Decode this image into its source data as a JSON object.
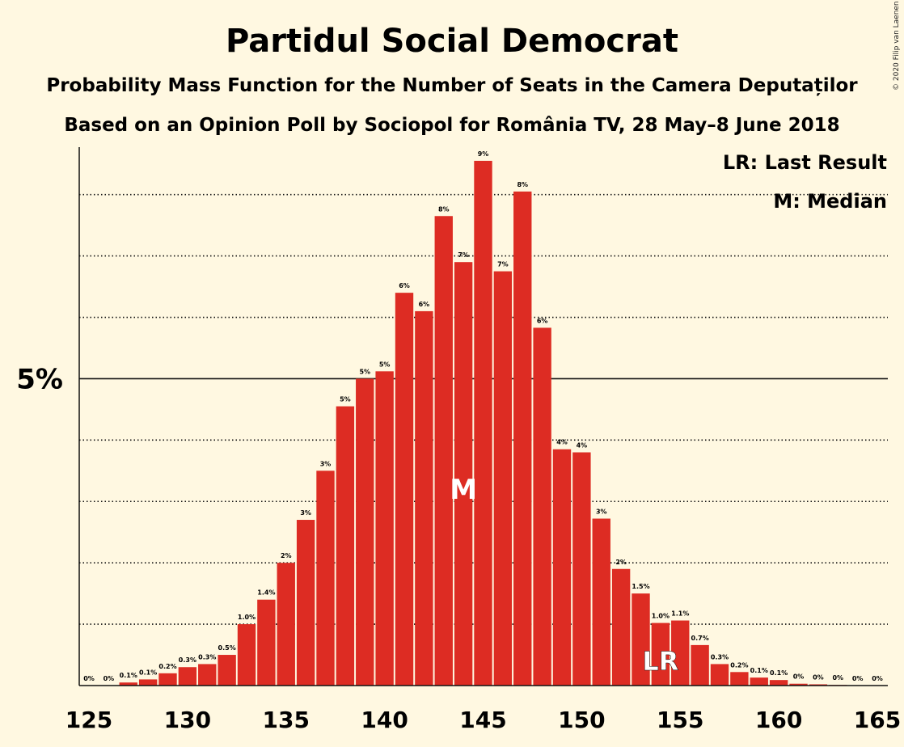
{
  "chart_data": {
    "type": "bar",
    "title": "Partidul Social Democrat",
    "subtitle1": "Probability Mass Function for the Number of Seats in the Camera Deputaților",
    "subtitle2": "Based on an Opinion Poll by Sociopol for România TV, 28 May–8 June 2018",
    "copyright": "© 2020 Filip van Laenen",
    "legend": {
      "lr": "LR: Last Result",
      "m": "M: Median"
    },
    "xlim": [
      125,
      165
    ],
    "ylim": [
      0,
      9.3
    ],
    "x_ticks": [
      125,
      130,
      135,
      140,
      145,
      150,
      155,
      160,
      165
    ],
    "y_ticks": [
      {
        "value": 5,
        "label": "5%"
      }
    ],
    "gridlines": [
      1,
      2,
      3,
      4,
      6,
      7,
      8
    ],
    "bar_color": "#dd2c23",
    "x": [
      125,
      126,
      127,
      128,
      129,
      130,
      131,
      132,
      133,
      134,
      135,
      136,
      137,
      138,
      139,
      140,
      141,
      142,
      143,
      144,
      145,
      146,
      147,
      148,
      149,
      150,
      151,
      152,
      153,
      154,
      155,
      156,
      157,
      158,
      159,
      160,
      161,
      162,
      163,
      164,
      165
    ],
    "values": [
      0,
      0,
      0.05,
      0.1,
      0.2,
      0.3,
      0.35,
      0.5,
      1.0,
      1.4,
      2.0,
      2.7,
      3.5,
      4.55,
      5.0,
      5.12,
      6.4,
      6.1,
      7.65,
      6.9,
      8.55,
      6.75,
      8.05,
      5.83,
      3.85,
      3.8,
      2.72,
      1.9,
      1.5,
      1.02,
      1.06,
      0.66,
      0.35,
      0.22,
      0.13,
      0.09,
      0.03,
      0.02,
      0.01,
      0,
      0
    ],
    "labels": [
      "0%",
      "0%",
      "0.1%",
      "0.1%",
      "0.2%",
      "0.3%",
      "0.3%",
      "0.5%",
      "1.0%",
      "1.4%",
      "2%",
      "3%",
      "3%",
      "5%",
      "5%",
      "5%",
      "6%",
      "6%",
      "8%",
      "7%",
      "9%",
      "7%",
      "8%",
      "6%",
      "4%",
      "4%",
      "3%",
      "2%",
      "1.5%",
      "1.0%",
      "1.1%",
      "0.7%",
      "0.3%",
      "0.2%",
      "0.1%",
      "0.1%",
      "0%",
      "0%",
      "0%",
      "0%",
      "0%"
    ],
    "median": {
      "seat": 144,
      "label": "M"
    },
    "last_result": {
      "seat": 154,
      "label": "LR"
    }
  }
}
